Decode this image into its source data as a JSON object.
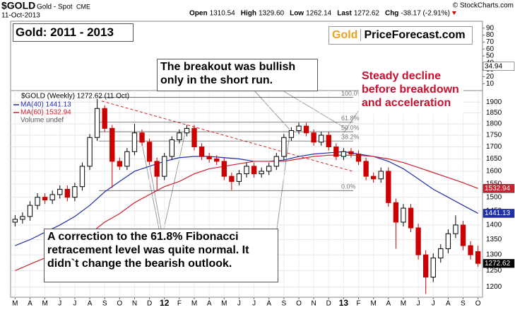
{
  "chart_data": [
    {
      "type": "line",
      "ylim": [
        0,
        100
      ],
      "yticks": [
        90,
        80,
        70,
        60,
        50,
        40,
        30,
        20,
        10
      ],
      "last_value": 34.94
    },
    {
      "type": "candlestick",
      "symbol": "$GOLD",
      "name": "Gold - Spot",
      "exchange": "CME",
      "date": "11-Oct-2013",
      "quote": [
        {
          "label": "Open",
          "value": 1310.54
        },
        {
          "label": "High",
          "value": 1329.6,
          "value_label": "1329.60"
        },
        {
          "label": "Low",
          "value": 1262.14
        },
        {
          "label": "Last",
          "value": 1272.62
        },
        {
          "label": "Chg",
          "value": -38.17,
          "value_label": "-38.17 (-2.91%)"
        }
      ],
      "credit": "© StockCharts.com",
      "legend_title": "$GOLD (Weekly) 1272.62 (11 Oct)",
      "volume_label": "Volume undef",
      "x": [
        0,
        0.5,
        1,
        1.5,
        2,
        2.5,
        3,
        3.5,
        4,
        4.5,
        5,
        5.5,
        6,
        6.5,
        7,
        7.5,
        8,
        8.5,
        9,
        9.5,
        10,
        10.5,
        11,
        11.5,
        12,
        12.5,
        13,
        13.5,
        14,
        14.5,
        15,
        15.5,
        16,
        16.5,
        17,
        17.5,
        18,
        18.5,
        19,
        19.5,
        20,
        20.5,
        21,
        21.5,
        22,
        22.5,
        23,
        23.5,
        24,
        24.5,
        25,
        25.5,
        26,
        26.5,
        27,
        27.5,
        28,
        28.5,
        29,
        29.5,
        30,
        30.5,
        31
      ],
      "open": [
        1410,
        1420,
        1430,
        1470,
        1500,
        1490,
        1510,
        1530,
        1500,
        1540,
        1620,
        1740,
        1870,
        1780,
        1640,
        1620,
        1680,
        1760,
        1720,
        1640,
        1580,
        1660,
        1730,
        1760,
        1780,
        1700,
        1660,
        1650,
        1640,
        1580,
        1560,
        1590,
        1620,
        1590,
        1600,
        1620,
        1660,
        1740,
        1770,
        1790,
        1760,
        1720,
        1750,
        1700,
        1660,
        1680,
        1670,
        1640,
        1580,
        1570,
        1600,
        1480,
        1410,
        1460,
        1390,
        1300,
        1230,
        1290,
        1320,
        1370,
        1400,
        1330,
        1310.54
      ],
      "high": [
        1435,
        1445,
        1485,
        1515,
        1515,
        1525,
        1545,
        1545,
        1555,
        1635,
        1755,
        1915,
        1885,
        1795,
        1655,
        1695,
        1800,
        1775,
        1735,
        1655,
        1675,
        1745,
        1775,
        1795,
        1795,
        1715,
        1675,
        1665,
        1655,
        1595,
        1605,
        1635,
        1635,
        1615,
        1635,
        1675,
        1755,
        1785,
        1805,
        1805,
        1775,
        1765,
        1765,
        1715,
        1695,
        1695,
        1685,
        1655,
        1595,
        1615,
        1615,
        1495,
        1475,
        1475,
        1405,
        1315,
        1305,
        1335,
        1385,
        1434,
        1415,
        1345,
        1329.6
      ],
      "low": [
        1395,
        1405,
        1415,
        1455,
        1475,
        1475,
        1495,
        1485,
        1485,
        1525,
        1605,
        1725,
        1765,
        1535,
        1605,
        1605,
        1665,
        1705,
        1625,
        1525,
        1565,
        1645,
        1715,
        1745,
        1685,
        1645,
        1635,
        1625,
        1565,
        1527,
        1545,
        1575,
        1575,
        1575,
        1585,
        1605,
        1645,
        1725,
        1755,
        1745,
        1705,
        1705,
        1685,
        1645,
        1645,
        1655,
        1625,
        1565,
        1555,
        1555,
        1465,
        1320,
        1395,
        1375,
        1285,
        1180,
        1215,
        1275,
        1305,
        1355,
        1315,
        1285,
        1262.14
      ],
      "close": [
        1420,
        1430,
        1470,
        1500,
        1490,
        1510,
        1530,
        1500,
        1540,
        1620,
        1740,
        1870,
        1780,
        1640,
        1620,
        1680,
        1760,
        1720,
        1640,
        1580,
        1660,
        1730,
        1760,
        1780,
        1700,
        1660,
        1650,
        1640,
        1580,
        1560,
        1590,
        1620,
        1590,
        1600,
        1620,
        1660,
        1740,
        1770,
        1790,
        1760,
        1720,
        1750,
        1700,
        1660,
        1680,
        1670,
        1640,
        1580,
        1570,
        1600,
        1480,
        1410,
        1460,
        1390,
        1300,
        1230,
        1290,
        1320,
        1370,
        1400,
        1330,
        1300,
        1272.62
      ],
      "series": [
        {
          "name": "MA(40) 1441.13",
          "color": "#1f2fa8",
          "x": [
            0,
            1,
            2,
            3,
            4,
            5,
            6,
            7,
            8,
            9,
            10,
            11,
            12,
            13,
            14,
            15,
            16,
            17,
            18,
            19,
            20,
            21,
            22,
            23,
            24,
            25,
            26,
            27,
            28,
            29,
            30,
            31
          ],
          "values": [
            1330,
            1350,
            1375,
            1400,
            1430,
            1470,
            1520,
            1560,
            1600,
            1620,
            1640,
            1655,
            1660,
            1660,
            1655,
            1650,
            1640,
            1640,
            1645,
            1660,
            1670,
            1675,
            1680,
            1670,
            1660,
            1640,
            1610,
            1570,
            1530,
            1500,
            1470,
            1441.13
          ]
        },
        {
          "name": "MA(60) 1532.94",
          "color": "#d02030",
          "x": [
            0,
            1,
            2,
            3,
            4,
            5,
            6,
            7,
            8,
            9,
            10,
            11,
            12,
            13,
            14,
            15,
            16,
            17,
            18,
            19,
            20,
            21,
            22,
            23,
            24,
            25,
            26,
            27,
            28,
            29,
            30,
            31
          ],
          "values": [
            1250,
            1270,
            1290,
            1310,
            1340,
            1370,
            1410,
            1440,
            1480,
            1510,
            1540,
            1560,
            1590,
            1610,
            1620,
            1630,
            1640,
            1640,
            1640,
            1650,
            1660,
            1665,
            1665,
            1665,
            1660,
            1650,
            1635,
            1615,
            1595,
            1575,
            1555,
            1532.94
          ]
        }
      ],
      "ylim": [
        1170,
        1955
      ],
      "log": true,
      "grid": true,
      "yticks": [
        1200,
        1250,
        1300,
        1350,
        1400,
        1450,
        1500,
        1550,
        1600,
        1650,
        1700,
        1750,
        1800,
        1850,
        1900
      ],
      "xlim": [
        -0.3,
        31.3
      ],
      "xticks": [
        {
          "value": 0,
          "label": "M"
        },
        {
          "value": 1,
          "label": "A"
        },
        {
          "value": 2,
          "label": "M"
        },
        {
          "value": 3,
          "label": "J"
        },
        {
          "value": 4,
          "label": "J"
        },
        {
          "value": 5,
          "label": "A"
        },
        {
          "value": 6,
          "label": "S"
        },
        {
          "value": 7,
          "label": "O"
        },
        {
          "value": 8,
          "label": "N"
        },
        {
          "value": 9,
          "label": "D"
        },
        {
          "value": 10,
          "label": "12"
        },
        {
          "value": 11,
          "label": "F"
        },
        {
          "value": 12,
          "label": "M"
        },
        {
          "value": 13,
          "label": "A"
        },
        {
          "value": 14,
          "label": "M"
        },
        {
          "value": 15,
          "label": "J"
        },
        {
          "value": 16,
          "label": "J"
        },
        {
          "value": 17,
          "label": "A"
        },
        {
          "value": 18,
          "label": "S"
        },
        {
          "value": 19,
          "label": "O"
        },
        {
          "value": 20,
          "label": "N"
        },
        {
          "value": 21,
          "label": "D"
        },
        {
          "value": 22,
          "label": "13"
        },
        {
          "value": 23,
          "label": "F"
        },
        {
          "value": 24,
          "label": "M"
        },
        {
          "value": 25,
          "label": "A"
        },
        {
          "value": 26,
          "label": "M"
        },
        {
          "value": 27,
          "label": "J"
        },
        {
          "value": 28,
          "label": "J"
        },
        {
          "value": 29,
          "label": "A"
        },
        {
          "value": 30,
          "label": "S"
        },
        {
          "value": 31,
          "label": "O"
        }
      ],
      "fibonacci": [
        {
          "label": "100.0%",
          "value": 1923
        },
        {
          "label": "61.8%",
          "value": 1808
        },
        {
          "label": "50.0%",
          "value": 1765
        },
        {
          "label": "38.2%",
          "value": 1725
        },
        {
          "label": "0.0%",
          "value": 1525
        }
      ],
      "trendline": {
        "x": [
          5.8,
          22.6
        ],
        "values": [
          1905,
          1600
        ],
        "color": "#dd2222"
      },
      "annotations": {
        "title_box": "Gold: 2011 - 2013",
        "brand_gold": "Gold",
        "brand_site": "PriceForecast.com",
        "breakout": "The breakout was bullish only in the short run.",
        "correction": "A correction to the 61.8% Fibonacci retracement level was quite normal. It didn`t change the bearish outlook.",
        "decline": "Steady decline before breakdown and acceleration"
      }
    }
  ]
}
